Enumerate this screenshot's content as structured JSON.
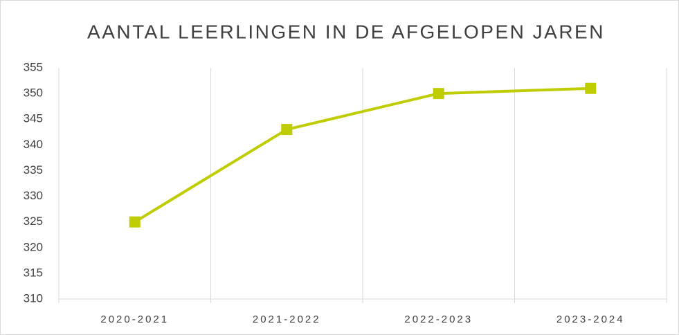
{
  "chart_data": {
    "type": "line",
    "title": "AANTAL LEERLINGEN IN DE AFGELOPEN JAREN",
    "categories": [
      "2020-2021",
      "2021-2022",
      "2022-2023",
      "2023-2024"
    ],
    "values": [
      325,
      343,
      350,
      351
    ],
    "color": "#bfcc00",
    "ylim": [
      310,
      355
    ],
    "yticks": [
      310,
      315,
      320,
      325,
      330,
      335,
      340,
      345,
      350,
      355
    ],
    "grid": false
  }
}
